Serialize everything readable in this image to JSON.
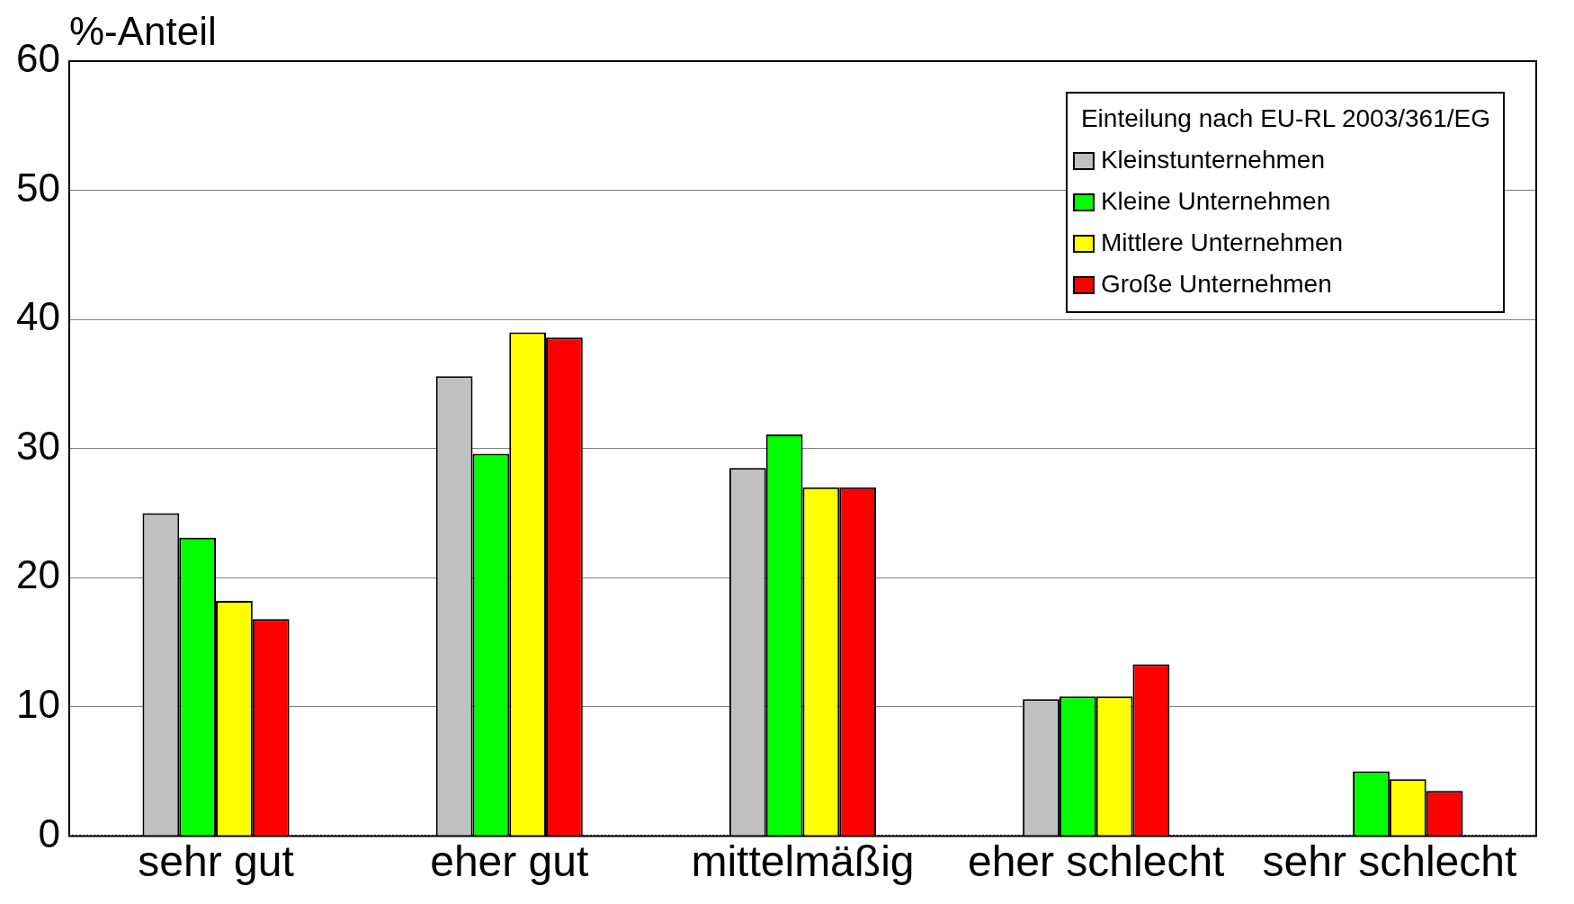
{
  "chart_data": {
    "type": "bar",
    "ylabel": "%-Anteil",
    "legend_title": "Einteilung nach EU-RL 2003/361/EG",
    "categories": [
      "sehr gut",
      "eher gut",
      "mittelmäßig",
      "eher schlecht",
      "sehr schlecht"
    ],
    "series": [
      {
        "name": "Kleinstunternehmen",
        "color": "#c0c0c0",
        "values": [
          25,
          35.6,
          28.5,
          10.6,
          0
        ]
      },
      {
        "name": "Kleine Unternehmen",
        "color": "#00ff00",
        "values": [
          23.1,
          29.6,
          31.1,
          10.8,
          5
        ]
      },
      {
        "name": "Mittlere Unternehmen",
        "color": "#ffff00",
        "values": [
          18.2,
          39,
          27,
          10.8,
          4.4
        ]
      },
      {
        "name": "Große Unternehmen",
        "color": "#ff0000",
        "values": [
          16.8,
          38.6,
          27,
          13.3,
          3.5
        ]
      }
    ],
    "ylim": [
      0,
      60
    ],
    "yticks": [
      0,
      10,
      20,
      30,
      40,
      50,
      60
    ],
    "grid": "y",
    "legend": "top right"
  }
}
